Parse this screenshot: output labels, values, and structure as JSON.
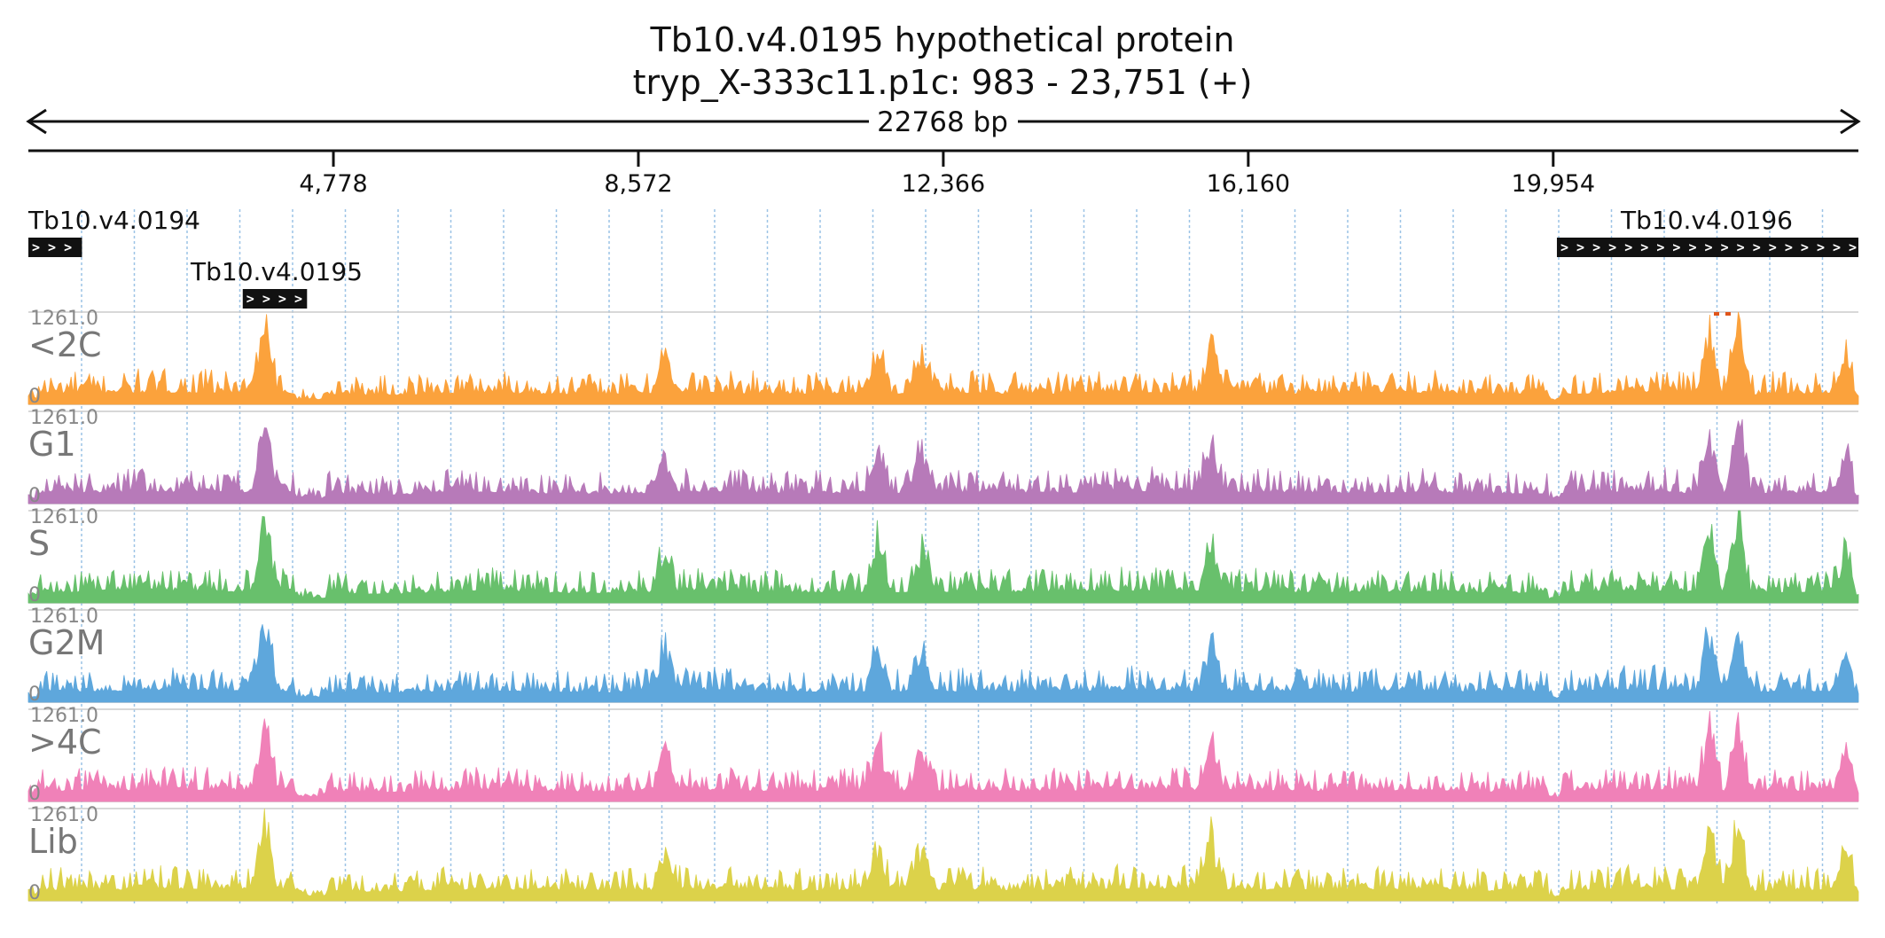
{
  "title_line1": "Tb10.v4.0195  hypothetical protein",
  "title_line2": "tryp_X-333c11.p1c: 983 - 23,751 (+)",
  "span_label": "22768 bp",
  "chart_data": {
    "type": "area",
    "x_range": [
      983,
      23751
    ],
    "x_ticks": [
      "4,778",
      "8,572",
      "12,366",
      "16,160",
      "19,954"
    ],
    "x_tick_values": [
      4778,
      8572,
      12366,
      16160,
      19954
    ],
    "genes": [
      {
        "name": "Tb10.v4.0194",
        "start": 983,
        "end": 1650,
        "strand": "+",
        "arrows": "> > >"
      },
      {
        "name": "Tb10.v4.0195",
        "start": 3650,
        "end": 4450,
        "strand": "+",
        "arrows": "> > > >"
      },
      {
        "name": "Tb10.v4.0196",
        "start": 20000,
        "end": 23751,
        "strand": "+",
        "arrows": "> > > > > > > > > > > > > > > > > > > >"
      }
    ],
    "tracks": [
      {
        "name": "<2C",
        "color": "#fba23c",
        "max_label": "1261.0",
        "min_label": "0",
        "ylim": [
          0,
          1261
        ]
      },
      {
        "name": "G1",
        "color": "#b77ab9",
        "max_label": "1261.0",
        "min_label": "0",
        "ylim": [
          0,
          1261
        ]
      },
      {
        "name": "S",
        "color": "#68c06c",
        "max_label": "1261.0",
        "min_label": "0",
        "ylim": [
          0,
          1261
        ]
      },
      {
        "name": "G2M",
        "color": "#5ea7dc",
        "max_label": "1261.0",
        "min_label": "0",
        "ylim": [
          0,
          1261
        ]
      },
      {
        "name": ">4C",
        "color": "#f081b8",
        "max_label": "1261.0",
        "min_label": "0",
        "ylim": [
          0,
          1261
        ]
      },
      {
        "name": "Lib",
        "color": "#dcd24a",
        "max_label": "1261.0",
        "min_label": "0",
        "ylim": [
          0,
          1261
        ]
      }
    ],
    "peaks": [
      {
        "pos": 3920,
        "value": 1000
      },
      {
        "pos": 8900,
        "value": 620
      },
      {
        "pos": 11550,
        "value": 720
      },
      {
        "pos": 12100,
        "value": 650
      },
      {
        "pos": 15700,
        "value": 760
      },
      {
        "pos": 21900,
        "value": 1000
      },
      {
        "pos": 22250,
        "value": 1180
      },
      {
        "pos": 23600,
        "value": 620
      }
    ],
    "grid": "dotted-vertical",
    "overflow_color": "#e0551a"
  }
}
